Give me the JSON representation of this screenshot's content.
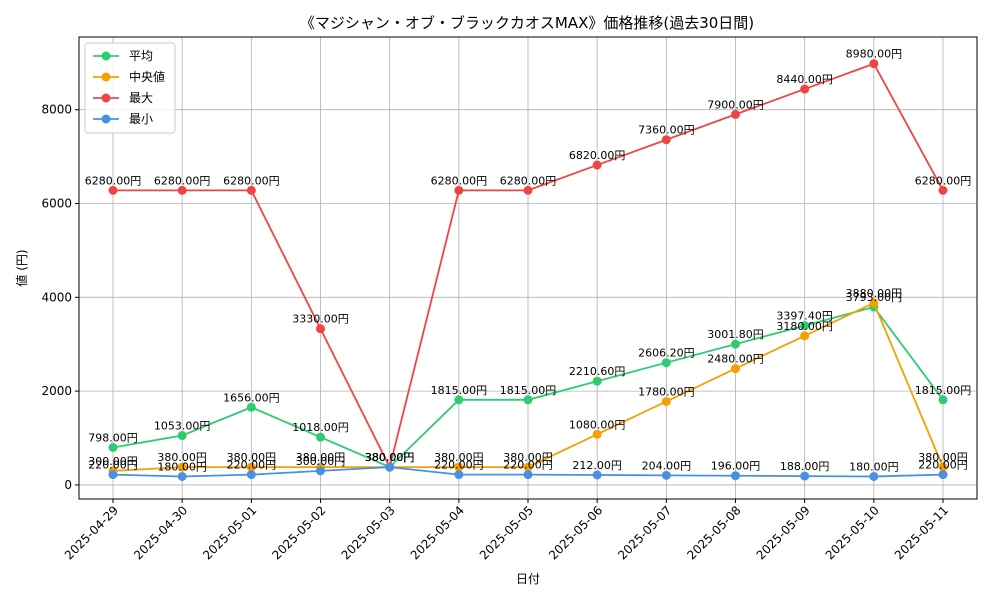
{
  "chart_data": {
    "type": "line",
    "title": "《マジシャン・オブ・ブラックカオスMAX》価格推移(過去30日間)",
    "xlabel": "日付",
    "ylabel": "値 (円)",
    "ylim": [
      -300,
      9550
    ],
    "yticks": [
      0,
      2000,
      4000,
      6000,
      8000
    ],
    "grid": true,
    "legend_position": "top-left",
    "categories": [
      "2025-04-29",
      "2025-04-30",
      "2025-05-01",
      "2025-05-02",
      "2025-05-03",
      "2025-05-04",
      "2025-05-05",
      "2025-05-06",
      "2025-05-07",
      "2025-05-08",
      "2025-05-09",
      "2025-05-10",
      "2025-05-11"
    ],
    "series": [
      {
        "name": "平均",
        "color": "#2ecc71",
        "values": [
          798,
          1053,
          1656,
          1018,
          380,
          1815,
          1815,
          2210.6,
          2606.2,
          3001.8,
          3397.4,
          3793,
          1815
        ],
        "labels": [
          "798.00円",
          "1053.00円",
          "1656.00円",
          "1018.00円",
          "380.00円",
          "1815.00円",
          "1815.00円",
          "2210.60円",
          "2606.20円",
          "3001.80円",
          "3397.40円",
          "3793.00円",
          "1815.00円"
        ]
      },
      {
        "name": "中央値",
        "color": "#f5a000",
        "values": [
          300,
          380,
          380,
          380,
          380,
          380,
          380,
          1080,
          1780,
          2480,
          3180,
          3880,
          380
        ],
        "labels": [
          "300.00円",
          "380.00円",
          "380.00円",
          "380.00円",
          "380.00円",
          "380.00円",
          "380.00円",
          "1080.00円",
          "1780.00円",
          "2480.00円",
          "3180.00円",
          "3880.00円",
          "380.00円"
        ]
      },
      {
        "name": "最大",
        "color": "#ef4444",
        "values": [
          6280,
          6280,
          6280,
          3330,
          380,
          6280,
          6280,
          6820,
          7360,
          7900,
          8440,
          8980,
          6280
        ],
        "labels": [
          "6280.00円",
          "6280.00円",
          "6280.00円",
          "3330.00円",
          "380.00円",
          "6280.00円",
          "6280.00円",
          "6820.00円",
          "7360.00円",
          "7900.00円",
          "8440.00円",
          "8980.00円",
          "6280.00円"
        ]
      },
      {
        "name": "最小",
        "color": "#4a90e2",
        "values": [
          220,
          180,
          220,
          300,
          380,
          220,
          220,
          212,
          204,
          196,
          188,
          180,
          220
        ],
        "labels": [
          "220.00円",
          "180.00円",
          "220.00円",
          "300.00円",
          "380.00円",
          "220.00円",
          "220.00円",
          "212.00円",
          "204.00円",
          "196.00円",
          "188.00円",
          "180.00円",
          "220.00円"
        ]
      }
    ]
  }
}
